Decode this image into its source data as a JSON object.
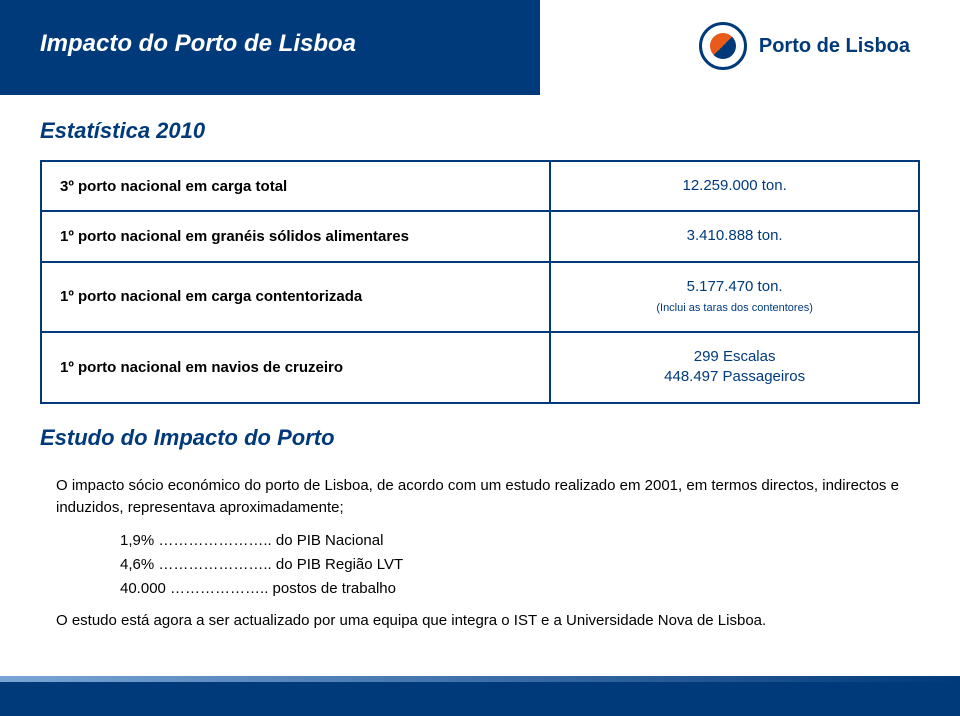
{
  "header": {
    "title": "Impacto do Porto de Lisboa",
    "brand": "Porto de Lisboa"
  },
  "sections": {
    "stats_heading": "Estatística 2010",
    "study_heading": "Estudo do Impacto do Porto"
  },
  "stats": {
    "rows": [
      {
        "label": "3º porto nacional em carga total",
        "value": "12.259.000 ton."
      },
      {
        "label": "1º porto nacional em granéis sólidos alimentares",
        "value": "3.410.888   ton."
      },
      {
        "label": "1º porto nacional em carga contentorizada",
        "value": "5.177.470 ton.",
        "sub": "(Inclui as taras dos contentores)"
      },
      {
        "label": "1º porto nacional em navios de cruzeiro",
        "value": "299 Escalas\n448.497 Passageiros"
      }
    ]
  },
  "study": {
    "intro": "O impacto sócio económico do porto de Lisboa, de acordo com um estudo realizado em 2001, em termos directos, indirectos e induzidos,  representava aproximadamente;",
    "lines": [
      "1,9% ………………….. do PIB Nacional",
      "4,6% ………………….. do PIB Região LVT",
      "40.000 ……………….. postos de trabalho"
    ],
    "footer": "O estudo está agora a ser actualizado por uma equipa que integra o IST e a Universidade Nova de Lisboa."
  },
  "colors": {
    "brand_blue": "#003a7a",
    "accent_orange": "#e85b1a",
    "text_black": "#000000",
    "background": "#ffffff"
  }
}
